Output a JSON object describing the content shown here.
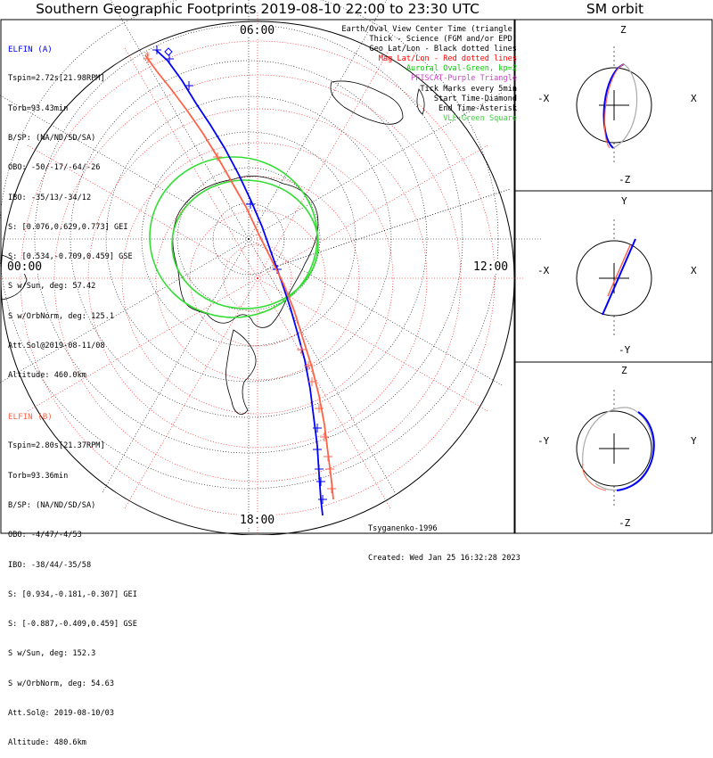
{
  "title": "Southern Geographic Footprints 2019-08-10 22:00 to 23:30 UTC",
  "sm_title": "SM orbit",
  "time_labels": {
    "top": "06:00",
    "left": "00:00",
    "right": "12:00",
    "bottom": "18:00"
  },
  "elfin_a": {
    "header": "ELFIN (A)",
    "color": "#0000ff",
    "lines": [
      "Tspin=2.72s[21.98RPM]",
      "Torb=93.43min",
      "B/SP: (NA/ND/SD/SA)",
      "OBO: -50/-17/-64/-26",
      "IBO: -35/13/-34/12",
      "S: [0.076,0.629,0.773] GEI",
      "S: [0.534,-0.709,0.459] GSE",
      "S w/Sun, deg: 57.42",
      "S w/OrbNorm, deg: 125.1",
      "Att.Sol@2019-08-11/08",
      "Altitude: 460.0km"
    ]
  },
  "elfin_b": {
    "header": "ELFIN (B)",
    "color": "#ff6347",
    "lines": [
      "Tspin=2.80s[21.37RPM]",
      "Torb=93.36min",
      "B/SP: (NA/ND/SD/SA)",
      "OBO: -4/47/-4/53",
      "IBO: -38/44/-35/58",
      "S: [0.934,-0.181,-0.307] GEI",
      "S: [-0.887,-0.409,0.459] GSE",
      "S w/Sun, deg: 152.3",
      "S w/OrbNorm, deg: 54.63",
      "Att.Sol@: 2019-08-10/03",
      "Altitude: 480.6km"
    ]
  },
  "legend": [
    {
      "text": "Earth/Oval View Center Time (triangle)",
      "color": "#000000"
    },
    {
      "text": "Thick - Science (FGM and/or EPD)",
      "color": "#000000"
    },
    {
      "text": "Geo Lat/Lon - Black dotted lines",
      "color": "#000000"
    },
    {
      "text": "Mag Lat/Lon - Red dotted lines",
      "color": "#ff0000"
    },
    {
      "text": "Auroral Oval-Green, kp=2",
      "color": "#00cc00"
    },
    {
      "text": "PFISCAT-Purple Triangle",
      "color": "#cc44cc"
    },
    {
      "text": "Tick Marks every 5min",
      "color": "#000000"
    },
    {
      "text": "Start Time-Diamond",
      "color": "#000000"
    },
    {
      "text": "End Time-Asterisk",
      "color": "#000000"
    },
    {
      "text": "VLF-Green Square",
      "color": "#44cc44"
    }
  ],
  "credits": [
    "Tsyganenko-1996",
    "Created: Wed Jan 25 16:32:28 2023"
  ],
  "sm_panels": [
    {
      "top": "Z",
      "bottom": "-Z",
      "left": "-X",
      "right": "X"
    },
    {
      "top": "Y",
      "bottom": "-Y",
      "left": "-X",
      "right": "X"
    },
    {
      "top": "Z",
      "bottom": "-Z",
      "left": "-Y",
      "right": "Y"
    }
  ],
  "colors": {
    "probe_a": "#0000ff",
    "probe_b": "#ff6347",
    "oval": "#33dd33",
    "mag_grid": "#ff0000",
    "geo_grid": "#000000"
  }
}
